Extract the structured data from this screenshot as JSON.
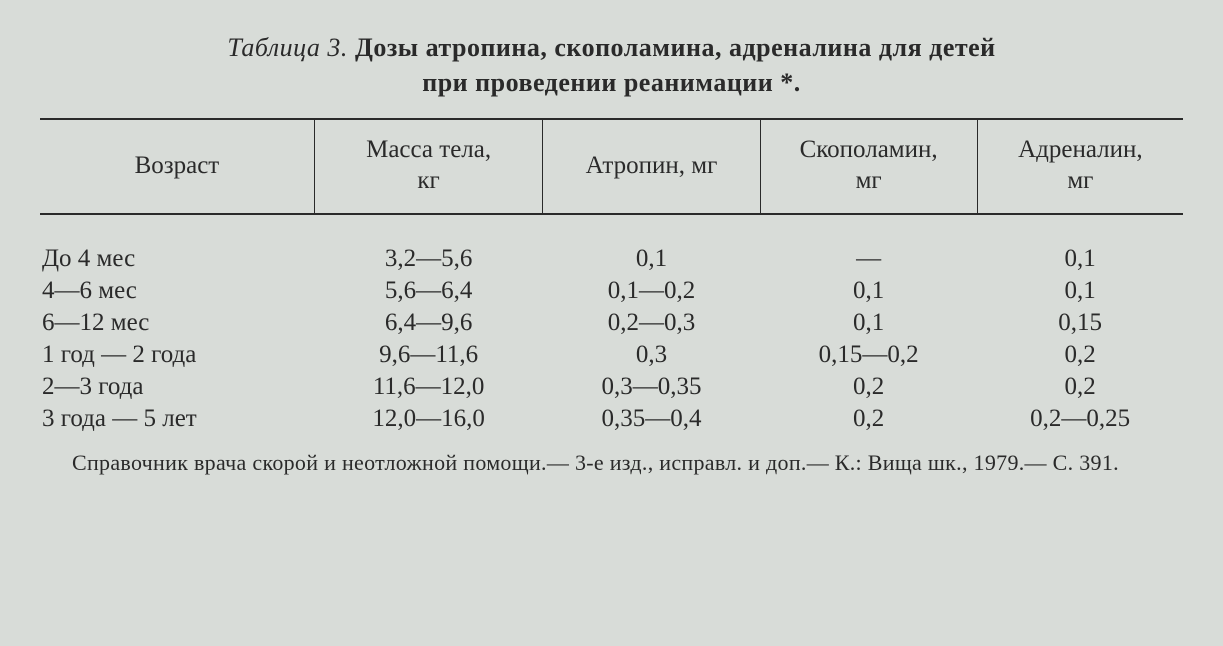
{
  "table": {
    "label": "Таблица 3.",
    "title_line1": "Дозы атропина, скополамина, адреналина для детей",
    "title_line2": "при проведении реанимации *.",
    "columns": [
      "Возраст",
      "Масса тела,\nкг",
      "Атропин, мг",
      "Скополамин,\nмг",
      "Адреналин,\nмг"
    ],
    "rows": [
      [
        "До 4 мес",
        "3,2—5,6",
        "0,1",
        "—",
        "0,1"
      ],
      [
        "4—6 мес",
        "5,6—6,4",
        "0,1—0,2",
        "0,1",
        "0,1"
      ],
      [
        "6—12 мес",
        "6,4—9,6",
        "0,2—0,3",
        "0,1",
        "0,15"
      ],
      [
        "1 год — 2 года",
        "9,6—11,6",
        "0,3",
        "0,15—0,2",
        "0,2"
      ],
      [
        "2—3 года",
        "11,6—12,0",
        "0,3—0,35",
        "0,2",
        "0,2"
      ],
      [
        "3 года — 5 лет",
        "12,0—16,0",
        "0,35—0,4",
        "0,2",
        "0,2—0,25"
      ]
    ],
    "footnote": "Справочник врача скорой и неотложной помощи.— 3-е изд., исправл. и доп.— К.: Вища шк., 1979.— С. 391.",
    "colors": {
      "background": "#d8dcd8",
      "text": "#2a2a2a",
      "rule": "#2a2a2a"
    },
    "typography": {
      "title_fontsize": 26,
      "header_fontsize": 25,
      "body_fontsize": 25,
      "footnote_fontsize": 22,
      "font_family": "Times New Roman"
    },
    "column_widths_pct": [
      24,
      20,
      19,
      19,
      18
    ]
  }
}
